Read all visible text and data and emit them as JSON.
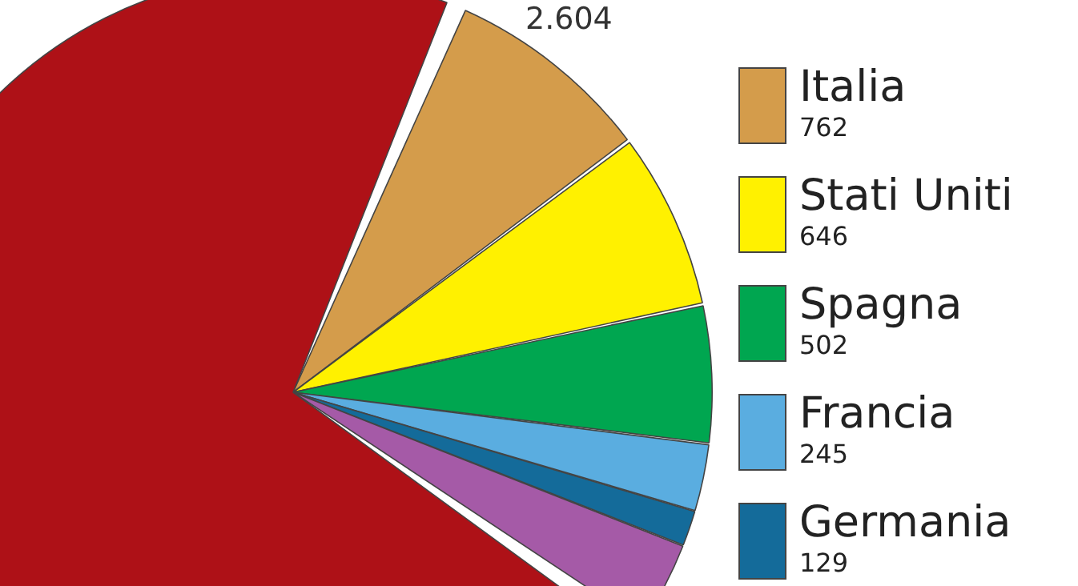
{
  "chart_data": {
    "type": "pie",
    "categories": [
      "Italia",
      "Stati Uniti",
      "Spagna",
      "Francia",
      "Germania",
      null,
      null
    ],
    "values": [
      762,
      646,
      502,
      245,
      129,
      320,
      6800
    ],
    "value_labels": [
      "762",
      "646",
      "502",
      "245",
      "129",
      null,
      null
    ],
    "colors": [
      "#d49c4b",
      "#fff100",
      "#00a650",
      "#5aade0",
      "#146b9a",
      "#a55aa7",
      "#ae1117"
    ],
    "annotations": [
      "2.604"
    ],
    "legend": "right"
  }
}
